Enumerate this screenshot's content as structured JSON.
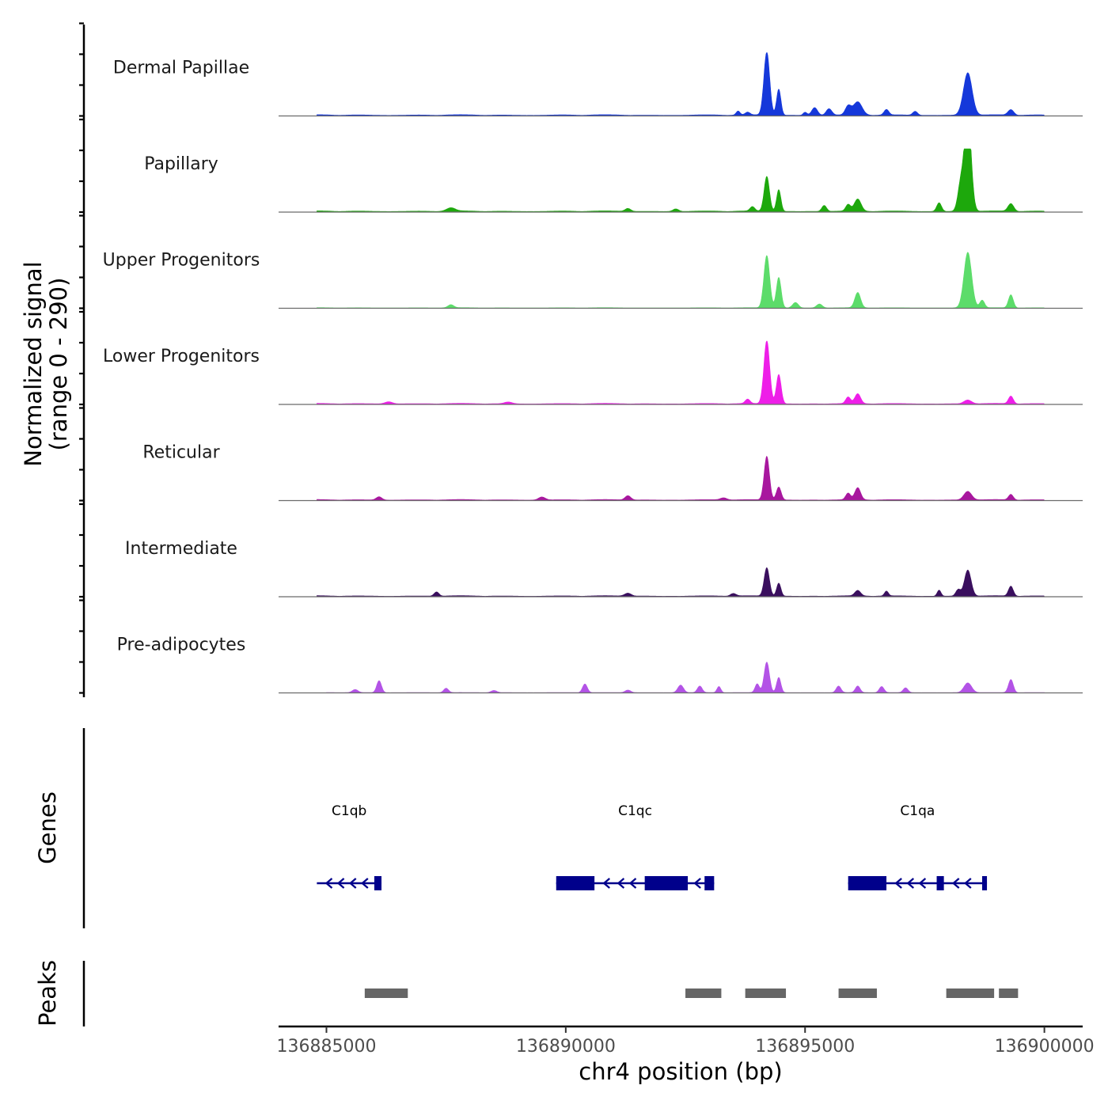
{
  "chart_data": {
    "type": "area",
    "title": "",
    "ylabel_line1": "Normalized signal",
    "ylabel_line2": "(range 0 - 290)",
    "xlabel": "chr4 position (bp)",
    "xlim": [
      136884000,
      136900800
    ],
    "ylim": [
      0,
      290
    ],
    "x_ticks": [
      {
        "value": 136885000,
        "label": "136885000"
      },
      {
        "value": 136890000,
        "label": "136890000"
      },
      {
        "value": 136895000,
        "label": "136895000"
      },
      {
        "value": 136900000,
        "label": "136900000"
      }
    ],
    "series": [
      {
        "name": "Dermal Papillae",
        "color": "#1538DA",
        "start": 136884800,
        "end": 136900000,
        "baseline": 6,
        "peaks": [
          {
            "x": 136894200,
            "y": 290,
            "w": 60
          },
          {
            "x": 136894450,
            "y": 120,
            "w": 45
          },
          {
            "x": 136898400,
            "y": 195,
            "w": 90
          },
          {
            "x": 136896100,
            "y": 60,
            "w": 90
          },
          {
            "x": 136895900,
            "y": 40,
            "w": 60
          },
          {
            "x": 136895200,
            "y": 35,
            "w": 60
          },
          {
            "x": 136895500,
            "y": 30,
            "w": 60
          },
          {
            "x": 136896700,
            "y": 25,
            "w": 50
          },
          {
            "x": 136899300,
            "y": 25,
            "w": 60
          },
          {
            "x": 136897300,
            "y": 18,
            "w": 50
          },
          {
            "x": 136893800,
            "y": 12,
            "w": 50
          },
          {
            "x": 136893600,
            "y": 18,
            "w": 40
          },
          {
            "x": 136895000,
            "y": 14,
            "w": 40
          }
        ]
      },
      {
        "name": "Papillary",
        "color": "#1DA80C",
        "start": 136884800,
        "end": 136900000,
        "baseline": 6,
        "peaks": [
          {
            "x": 136898400,
            "y": 450,
            "w": 70
          },
          {
            "x": 136898250,
            "y": 120,
            "w": 60
          },
          {
            "x": 136894200,
            "y": 160,
            "w": 55
          },
          {
            "x": 136894450,
            "y": 100,
            "w": 45
          },
          {
            "x": 136896100,
            "y": 55,
            "w": 70
          },
          {
            "x": 136895900,
            "y": 30,
            "w": 50
          },
          {
            "x": 136897800,
            "y": 40,
            "w": 50
          },
          {
            "x": 136899300,
            "y": 35,
            "w": 60
          },
          {
            "x": 136895400,
            "y": 28,
            "w": 50
          },
          {
            "x": 136893900,
            "y": 20,
            "w": 50
          },
          {
            "x": 136887600,
            "y": 15,
            "w": 90
          },
          {
            "x": 136891300,
            "y": 14,
            "w": 60
          },
          {
            "x": 136892300,
            "y": 12,
            "w": 60
          }
        ]
      },
      {
        "name": "Upper Progenitors",
        "color": "#5CDC6A",
        "start": 136884800,
        "end": 136900000,
        "baseline": 3,
        "peaks": [
          {
            "x": 136894200,
            "y": 240,
            "w": 60
          },
          {
            "x": 136894450,
            "y": 140,
            "w": 50
          },
          {
            "x": 136898400,
            "y": 255,
            "w": 80
          },
          {
            "x": 136896100,
            "y": 70,
            "w": 60
          },
          {
            "x": 136899300,
            "y": 60,
            "w": 50
          },
          {
            "x": 136898700,
            "y": 35,
            "w": 50
          },
          {
            "x": 136894800,
            "y": 25,
            "w": 60
          },
          {
            "x": 136895300,
            "y": 18,
            "w": 60
          },
          {
            "x": 136887600,
            "y": 14,
            "w": 60
          }
        ]
      },
      {
        "name": "Lower Progenitors",
        "color": "#EE1EE8",
        "start": 136884800,
        "end": 136900000,
        "baseline": 5,
        "peaks": [
          {
            "x": 136894200,
            "y": 290,
            "w": 60
          },
          {
            "x": 136894450,
            "y": 135,
            "w": 50
          },
          {
            "x": 136896100,
            "y": 45,
            "w": 60
          },
          {
            "x": 136895900,
            "y": 30,
            "w": 50
          },
          {
            "x": 136899300,
            "y": 35,
            "w": 50
          },
          {
            "x": 136893800,
            "y": 20,
            "w": 50
          },
          {
            "x": 136898400,
            "y": 18,
            "w": 80
          },
          {
            "x": 136886300,
            "y": 10,
            "w": 80
          },
          {
            "x": 136888800,
            "y": 8,
            "w": 80
          }
        ]
      },
      {
        "name": "Reticular",
        "color": "#A8179E",
        "start": 136884800,
        "end": 136900000,
        "baseline": 5,
        "peaks": [
          {
            "x": 136894200,
            "y": 200,
            "w": 55
          },
          {
            "x": 136894450,
            "y": 60,
            "w": 50
          },
          {
            "x": 136896100,
            "y": 55,
            "w": 60
          },
          {
            "x": 136895900,
            "y": 30,
            "w": 50
          },
          {
            "x": 136898400,
            "y": 40,
            "w": 80
          },
          {
            "x": 136899300,
            "y": 25,
            "w": 50
          },
          {
            "x": 136891300,
            "y": 20,
            "w": 60
          },
          {
            "x": 136889500,
            "y": 14,
            "w": 70
          },
          {
            "x": 136886100,
            "y": 15,
            "w": 60
          },
          {
            "x": 136893300,
            "y": 10,
            "w": 70
          }
        ]
      },
      {
        "name": "Intermediate",
        "color": "#3A0F5E",
        "start": 136884800,
        "end": 136900000,
        "baseline": 5,
        "peaks": [
          {
            "x": 136894200,
            "y": 130,
            "w": 55
          },
          {
            "x": 136894450,
            "y": 60,
            "w": 45
          },
          {
            "x": 136898400,
            "y": 120,
            "w": 70
          },
          {
            "x": 136898200,
            "y": 30,
            "w": 50
          },
          {
            "x": 136899300,
            "y": 45,
            "w": 50
          },
          {
            "x": 136897800,
            "y": 28,
            "w": 40
          },
          {
            "x": 136896100,
            "y": 25,
            "w": 60
          },
          {
            "x": 136896700,
            "y": 22,
            "w": 40
          },
          {
            "x": 136887300,
            "y": 20,
            "w": 50
          },
          {
            "x": 136891300,
            "y": 14,
            "w": 70
          },
          {
            "x": 136893500,
            "y": 12,
            "w": 60
          }
        ]
      },
      {
        "name": "Pre-adipocytes",
        "color": "#B353E6",
        "start": 136885000,
        "end": 136900000,
        "baseline": 2,
        "peaks": [
          {
            "x": 136894200,
            "y": 140,
            "w": 55
          },
          {
            "x": 136894450,
            "y": 70,
            "w": 45
          },
          {
            "x": 136894000,
            "y": 40,
            "w": 45
          },
          {
            "x": 136886100,
            "y": 55,
            "w": 50
          },
          {
            "x": 136890400,
            "y": 40,
            "w": 50
          },
          {
            "x": 136899300,
            "y": 60,
            "w": 50
          },
          {
            "x": 136898400,
            "y": 45,
            "w": 80
          },
          {
            "x": 136892400,
            "y": 35,
            "w": 60
          },
          {
            "x": 136892800,
            "y": 30,
            "w": 50
          },
          {
            "x": 136895700,
            "y": 30,
            "w": 50
          },
          {
            "x": 136896100,
            "y": 30,
            "w": 50
          },
          {
            "x": 136896600,
            "y": 28,
            "w": 50
          },
          {
            "x": 136897100,
            "y": 22,
            "w": 50
          },
          {
            "x": 136893200,
            "y": 28,
            "w": 40
          },
          {
            "x": 136887500,
            "y": 20,
            "w": 50
          },
          {
            "x": 136885600,
            "y": 14,
            "w": 60
          },
          {
            "x": 136888500,
            "y": 10,
            "w": 60
          },
          {
            "x": 136891300,
            "y": 12,
            "w": 60
          }
        ]
      }
    ],
    "genes_track": {
      "label": "Genes",
      "color": "#00008B",
      "genes": [
        {
          "name": "C1qb",
          "strand": "-",
          "start": 136884800,
          "end": 136886150,
          "exons": [
            [
              136886000,
              136886150
            ]
          ],
          "arrows": [
            136885000,
            136885250,
            136885500,
            136885750
          ]
        },
        {
          "name": "C1qc",
          "strand": "-",
          "start": 136889800,
          "end": 136893100,
          "exons": [
            [
              136889800,
              136890600
            ],
            [
              136891650,
              136892550
            ],
            [
              136892900,
              136893100
            ]
          ],
          "arrows": [
            136890800,
            136891100,
            136891350,
            136892700
          ]
        },
        {
          "name": "C1qa",
          "strand": "-",
          "start": 136895900,
          "end": 136898800,
          "exons": [
            [
              136895900,
              136896700
            ],
            [
              136897750,
              136897900
            ],
            [
              136898700,
              136898800
            ]
          ],
          "arrows": [
            136896900,
            136897150,
            136897400,
            136898100,
            136898350
          ]
        }
      ]
    },
    "peaks_track": {
      "label": "Peaks",
      "color": "#666666",
      "regions": [
        [
          136885800,
          136886700
        ],
        [
          136892500,
          136893250
        ],
        [
          136893750,
          136894600
        ],
        [
          136895700,
          136896500
        ],
        [
          136897950,
          136898950
        ],
        [
          136899050,
          136899450
        ]
      ]
    }
  }
}
